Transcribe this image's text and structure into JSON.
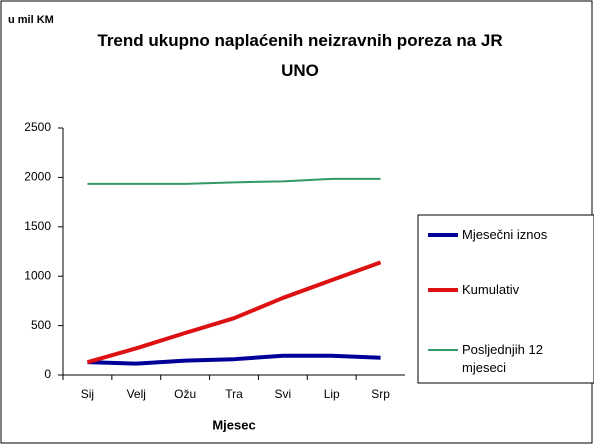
{
  "chart_data": {
    "type": "line",
    "title": "Trend ukupno naplaćenih neizravnih poreza na JR UNO",
    "y_label": "u mil KM",
    "x_label": "Mjesec",
    "categories": [
      "Sij",
      "Velj",
      "Ožu",
      "Tra",
      "Svi",
      "Lip",
      "Srp"
    ],
    "series": [
      {
        "name": "Mjesečni iznos",
        "color": "#000099",
        "width": 4,
        "values": [
          130,
          115,
          145,
          160,
          195,
          195,
          175
        ]
      },
      {
        "name": "Kumulativ",
        "color": "#dd1111",
        "width": 4,
        "values": [
          130,
          270,
          425,
          575,
          780,
          960,
          1140
        ]
      },
      {
        "name": "Posljednjih 12 mjeseci",
        "color": "#339966",
        "width": 2,
        "values": [
          1935,
          1935,
          1935,
          1950,
          1960,
          1985,
          1985
        ]
      }
    ],
    "ylim": [
      0,
      2500
    ],
    "yticks": [
      0,
      500,
      1000,
      1500,
      2000,
      2500
    ],
    "grid": false,
    "legend": "right"
  }
}
